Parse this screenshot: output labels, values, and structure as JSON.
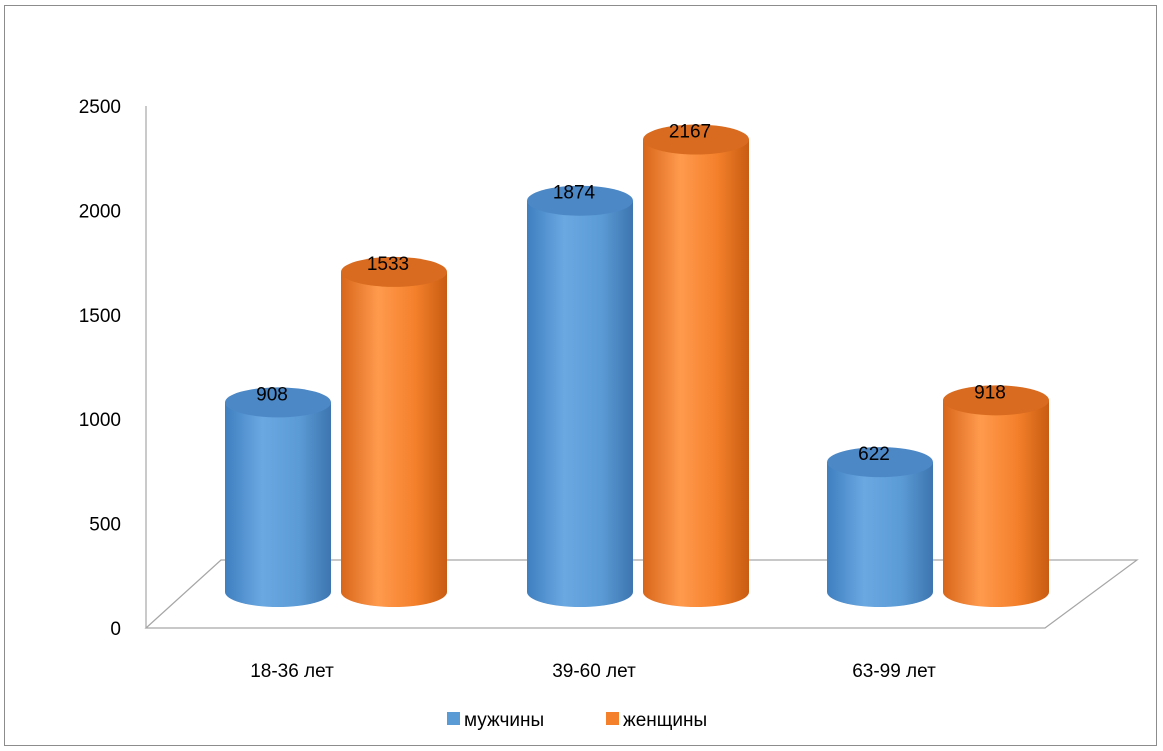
{
  "chart_data": {
    "type": "bar",
    "style": "3d-cylinder",
    "categories": [
      "18-36 лет",
      "39-60 лет",
      "63-99 лет"
    ],
    "series": [
      {
        "name": "мужчины",
        "values": [
          908,
          1874,
          622
        ],
        "color": "#5b9bd5",
        "data_labels": [
          "908",
          "1874",
          "622"
        ]
      },
      {
        "name": "женщины",
        "values": [
          1533,
          2167,
          918
        ],
        "color": "#f4802b",
        "data_labels": [
          "1533",
          "2167",
          "918"
        ]
      }
    ],
    "ylim": [
      0,
      2500
    ],
    "yticks": [
      0,
      500,
      1000,
      1500,
      2000,
      2500
    ],
    "ytick_labels": [
      "0",
      "500",
      "1000",
      "1500",
      "2000",
      "2500"
    ],
    "legend_position": "bottom",
    "grid": false
  }
}
